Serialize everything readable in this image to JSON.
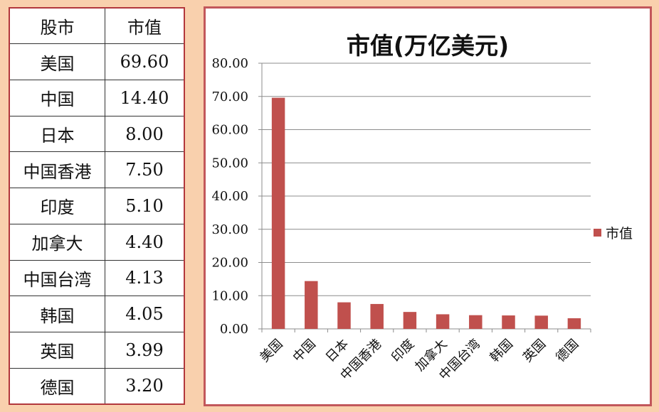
{
  "table": {
    "headers": [
      "股市",
      "市值"
    ],
    "rows": [
      {
        "name": "美国",
        "value": "69.60"
      },
      {
        "name": "中国",
        "value": "14.40"
      },
      {
        "name": "日本",
        "value": "8.00"
      },
      {
        "name": "中国香港",
        "value": "7.50"
      },
      {
        "name": "印度",
        "value": "5.10"
      },
      {
        "name": "加拿大",
        "value": "4.40"
      },
      {
        "name": "中国台湾",
        "value": "4.13"
      },
      {
        "name": "韩国",
        "value": "4.05"
      },
      {
        "name": "英国",
        "value": "3.99"
      },
      {
        "name": "德国",
        "value": "3.20"
      }
    ]
  },
  "chart_data": {
    "type": "bar",
    "title": "市值(万亿美元)",
    "categories": [
      "美国",
      "中国",
      "日本",
      "中国香港",
      "印度",
      "加拿大",
      "中国台湾",
      "韩国",
      "英国",
      "德国"
    ],
    "series": [
      {
        "name": "市值",
        "values": [
          69.6,
          14.4,
          8.0,
          7.5,
          5.1,
          4.4,
          4.13,
          4.05,
          3.99,
          3.2
        ]
      }
    ],
    "ylim": [
      0,
      80
    ],
    "yticks": [
      "0.00",
      "10.00",
      "20.00",
      "30.00",
      "40.00",
      "50.00",
      "60.00",
      "70.00",
      "80.00"
    ],
    "grid": true,
    "legend_position": "right",
    "bar_color": "#c0504d"
  }
}
